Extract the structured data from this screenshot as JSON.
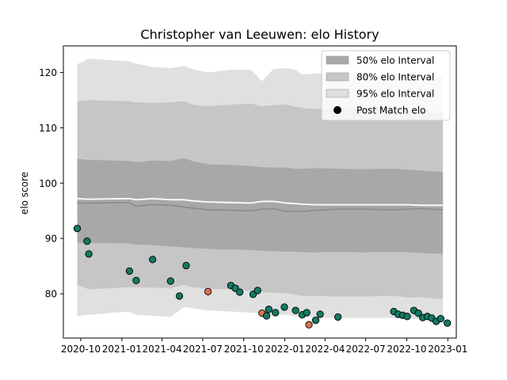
{
  "chart_data": {
    "type": "scatter",
    "title": "Christopher van Leeuwen: elo History",
    "xlabel": "",
    "ylabel": "elo score",
    "xlim": [
      "2020-08-23",
      "2023-01-20"
    ],
    "ylim": [
      72.0,
      124.8
    ],
    "grid": false,
    "legend_position": "top-right",
    "x_ticks": [
      "2020-10",
      "2021-01",
      "2021-04",
      "2021-07",
      "2021-10",
      "2022-01",
      "2022-04",
      "2022-07",
      "2022-10",
      "2023-01"
    ],
    "y_ticks": [
      80,
      90,
      100,
      110,
      120
    ],
    "legend": [
      {
        "label": "50% elo Interval",
        "swatch": "band50"
      },
      {
        "label": "80% elo Interval",
        "swatch": "band80"
      },
      {
        "label": "95% elo Interval",
        "swatch": "band95"
      },
      {
        "label": "Post Match elo",
        "swatch": "dot"
      }
    ],
    "colors": {
      "band50": "#a8a8a8",
      "band80": "#c6c6c6",
      "band95": "#e0e0e0",
      "median_line": "#8a8a8a",
      "mean_line": "#ffffff",
      "win_point": "#127a64",
      "loss_point": "#d9734a",
      "legend_dot": "#000000"
    },
    "x_band": [
      "2020-09-23",
      "2020-10-19",
      "2021-01-18",
      "2021-02-02",
      "2021-03-11",
      "2021-04-20",
      "2021-05-20",
      "2021-06-08",
      "2021-07-13",
      "2021-09-02",
      "2021-10-17",
      "2021-11-11",
      "2021-12-06",
      "2022-01-05",
      "2022-01-25",
      "2022-02-09",
      "2022-03-11",
      "2022-04-30",
      "2022-06-19",
      "2022-09-02",
      "2022-10-07",
      "2022-11-01",
      "2022-12-21"
    ],
    "band95_upper": [
      121.5,
      122.5,
      122.0,
      121.6,
      121.0,
      120.8,
      121.2,
      120.6,
      120.0,
      120.5,
      120.5,
      118.4,
      120.6,
      120.8,
      120.5,
      119.6,
      119.8,
      119.6,
      119.7,
      119.8,
      119.6,
      119.5,
      119.2
    ],
    "band95_lower": [
      76.0,
      76.2,
      76.8,
      76.2,
      76.0,
      75.8,
      77.6,
      77.4,
      77.0,
      76.8,
      76.6,
      76.4,
      76.2,
      76.2,
      75.9,
      75.8,
      75.7,
      75.6,
      75.6,
      75.6,
      75.5,
      75.4,
      75.2
    ],
    "band80_upper": [
      114.8,
      115.0,
      114.8,
      114.6,
      114.5,
      114.6,
      114.8,
      114.2,
      113.9,
      114.2,
      114.4,
      113.9,
      114.1,
      114.2,
      113.8,
      113.6,
      113.4,
      113.4,
      113.4,
      113.4,
      113.3,
      113.2,
      112.8
    ],
    "band80_lower": [
      81.6,
      80.8,
      81.2,
      81.2,
      81.1,
      81.0,
      81.6,
      81.2,
      80.9,
      80.8,
      80.5,
      80.3,
      80.2,
      80.1,
      79.8,
      79.6,
      79.6,
      79.5,
      79.5,
      79.6,
      79.3,
      79.4,
      79.0
    ],
    "band50_upper": [
      104.4,
      104.2,
      104.0,
      103.8,
      104.1,
      104.0,
      104.5,
      104.0,
      103.4,
      103.3,
      103.1,
      102.9,
      102.8,
      102.8,
      102.6,
      102.6,
      102.7,
      102.6,
      102.5,
      102.6,
      102.4,
      102.3,
      102.0
    ],
    "band50_lower": [
      89.2,
      89.2,
      89.1,
      88.9,
      88.8,
      88.6,
      88.4,
      88.3,
      88.1,
      88.0,
      87.9,
      87.8,
      87.7,
      87.6,
      87.6,
      87.5,
      87.5,
      87.6,
      87.5,
      87.6,
      87.5,
      87.4,
      87.2
    ],
    "median_line": [
      96.4,
      96.4,
      96.5,
      95.8,
      96.1,
      96.0,
      95.7,
      95.5,
      95.2,
      95.1,
      95.0,
      95.3,
      95.4,
      94.9,
      94.9,
      94.9,
      95.1,
      95.3,
      95.3,
      95.2,
      95.3,
      95.4,
      95.2
    ],
    "mean_line": [
      97.2,
      97.1,
      97.2,
      97.0,
      97.2,
      97.0,
      97.0,
      96.8,
      96.6,
      96.5,
      96.4,
      96.7,
      96.7,
      96.4,
      96.3,
      96.2,
      96.1,
      96.1,
      96.1,
      96.1,
      96.1,
      96.0,
      96.0
    ],
    "points": [
      {
        "x": "2020-09-23",
        "y": 91.8,
        "result": "win"
      },
      {
        "x": "2020-10-15",
        "y": 89.5,
        "result": "win"
      },
      {
        "x": "2020-10-19",
        "y": 87.2,
        "result": "win"
      },
      {
        "x": "2021-01-18",
        "y": 84.1,
        "result": "win"
      },
      {
        "x": "2021-02-02",
        "y": 82.4,
        "result": "win"
      },
      {
        "x": "2021-03-11",
        "y": 86.2,
        "result": "win"
      },
      {
        "x": "2021-04-20",
        "y": 82.3,
        "result": "win"
      },
      {
        "x": "2021-05-10",
        "y": 79.6,
        "result": "win"
      },
      {
        "x": "2021-05-25",
        "y": 85.1,
        "result": "win"
      },
      {
        "x": "2021-07-13",
        "y": 80.4,
        "result": "loss"
      },
      {
        "x": "2021-09-02",
        "y": 81.5,
        "result": "win"
      },
      {
        "x": "2021-09-12",
        "y": 81.0,
        "result": "win"
      },
      {
        "x": "2021-09-22",
        "y": 80.3,
        "result": "win"
      },
      {
        "x": "2021-10-22",
        "y": 79.9,
        "result": "win"
      },
      {
        "x": "2021-11-01",
        "y": 80.6,
        "result": "win"
      },
      {
        "x": "2021-11-11",
        "y": 76.5,
        "result": "loss"
      },
      {
        "x": "2021-11-21",
        "y": 76.0,
        "result": "win"
      },
      {
        "x": "2021-11-26",
        "y": 77.2,
        "result": "win"
      },
      {
        "x": "2021-12-11",
        "y": 76.6,
        "result": "win"
      },
      {
        "x": "2021-12-31",
        "y": 77.6,
        "result": "win"
      },
      {
        "x": "2022-01-25",
        "y": 77.0,
        "result": "win"
      },
      {
        "x": "2022-02-09",
        "y": 76.2,
        "result": "win"
      },
      {
        "x": "2022-02-19",
        "y": 76.6,
        "result": "win"
      },
      {
        "x": "2022-02-24",
        "y": 74.4,
        "result": "loss"
      },
      {
        "x": "2022-03-11",
        "y": 75.2,
        "result": "win"
      },
      {
        "x": "2022-03-21",
        "y": 76.3,
        "result": "win"
      },
      {
        "x": "2022-04-30",
        "y": 75.8,
        "result": "win"
      },
      {
        "x": "2022-09-02",
        "y": 76.8,
        "result": "win"
      },
      {
        "x": "2022-09-12",
        "y": 76.3,
        "result": "win"
      },
      {
        "x": "2022-09-22",
        "y": 76.1,
        "result": "win"
      },
      {
        "x": "2022-10-02",
        "y": 75.9,
        "result": "win"
      },
      {
        "x": "2022-10-17",
        "y": 77.0,
        "result": "win"
      },
      {
        "x": "2022-10-27",
        "y": 76.5,
        "result": "win"
      },
      {
        "x": "2022-11-06",
        "y": 75.7,
        "result": "win"
      },
      {
        "x": "2022-11-16",
        "y": 75.9,
        "result": "win"
      },
      {
        "x": "2022-11-26",
        "y": 75.6,
        "result": "win"
      },
      {
        "x": "2022-12-06",
        "y": 75.0,
        "result": "win"
      },
      {
        "x": "2022-12-16",
        "y": 75.5,
        "result": "win"
      },
      {
        "x": "2022-12-31",
        "y": 74.7,
        "result": "win"
      }
    ]
  }
}
